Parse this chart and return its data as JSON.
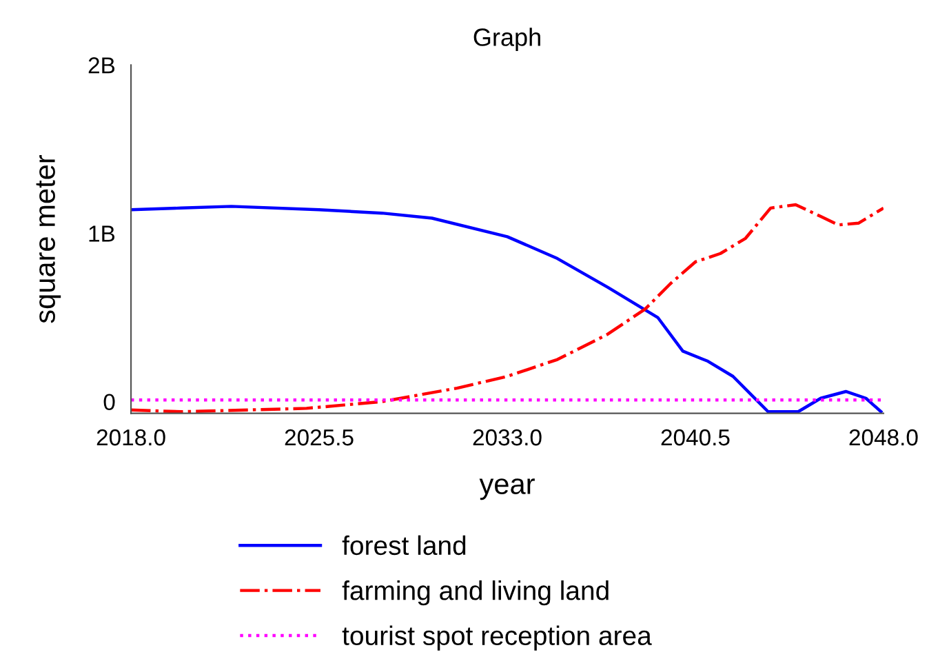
{
  "chart_data": {
    "type": "line",
    "title": "Graph",
    "xlabel": "year",
    "ylabel": "square meter",
    "xlim": [
      2018,
      2048
    ],
    "xticks": [
      {
        "value": 2018,
        "label": "2018.0"
      },
      {
        "value": 2025.5,
        "label": "2025.5"
      },
      {
        "value": 2033,
        "label": "2033.0"
      },
      {
        "value": 2040.5,
        "label": "2040.5"
      },
      {
        "value": 2048,
        "label": "2048.0"
      }
    ],
    "ylim": [
      -70000000,
      2000000000
    ],
    "yticks": [
      {
        "value": 0,
        "label": "0"
      },
      {
        "value": 1000000000,
        "label": "1B"
      },
      {
        "value": 2000000000,
        "label": "2B"
      }
    ],
    "grid": false,
    "legend": "bottom",
    "series": [
      {
        "name": "forest land",
        "color": "#0000ff",
        "line_style": "solid",
        "x": [
          2018,
          2020,
          2022,
          2025.5,
          2028,
          2030,
          2033,
          2035,
          2037,
          2039,
          2040,
          2041,
          2042,
          2043,
          2043.4,
          2044.6,
          2045.5,
          2046.5,
          2047.3,
          2047.9
        ],
        "values": [
          1140000000,
          1150000000,
          1160000000,
          1140000000,
          1120000000,
          1090000000,
          980000000,
          850000000,
          680000000,
          500000000,
          300000000,
          240000000,
          150000000,
          0,
          -60000000,
          -60000000,
          20000000,
          60000000,
          20000000,
          -60000000
        ]
      },
      {
        "name": "farming and living land",
        "color": "#ff0000",
        "line_style": "dashdot",
        "x": [
          2018,
          2020,
          2025,
          2028,
          2031,
          2033,
          2035,
          2037,
          2038.5,
          2039.5,
          2040.5,
          2041.5,
          2042.5,
          2043.5,
          2044.5,
          2045.5,
          2046.2,
          2047,
          2048
        ],
        "values": [
          -50000000,
          -60000000,
          -40000000,
          0,
          80000000,
          150000000,
          250000000,
          400000000,
          550000000,
          700000000,
          830000000,
          880000000,
          970000000,
          1150000000,
          1170000000,
          1100000000,
          1050000000,
          1060000000,
          1150000000
        ]
      },
      {
        "name": "tourist spot reception area",
        "color": "#ff00ff",
        "line_style": "dotted",
        "x": [
          2018,
          2048
        ],
        "values": [
          10000000,
          10000000
        ]
      }
    ]
  }
}
